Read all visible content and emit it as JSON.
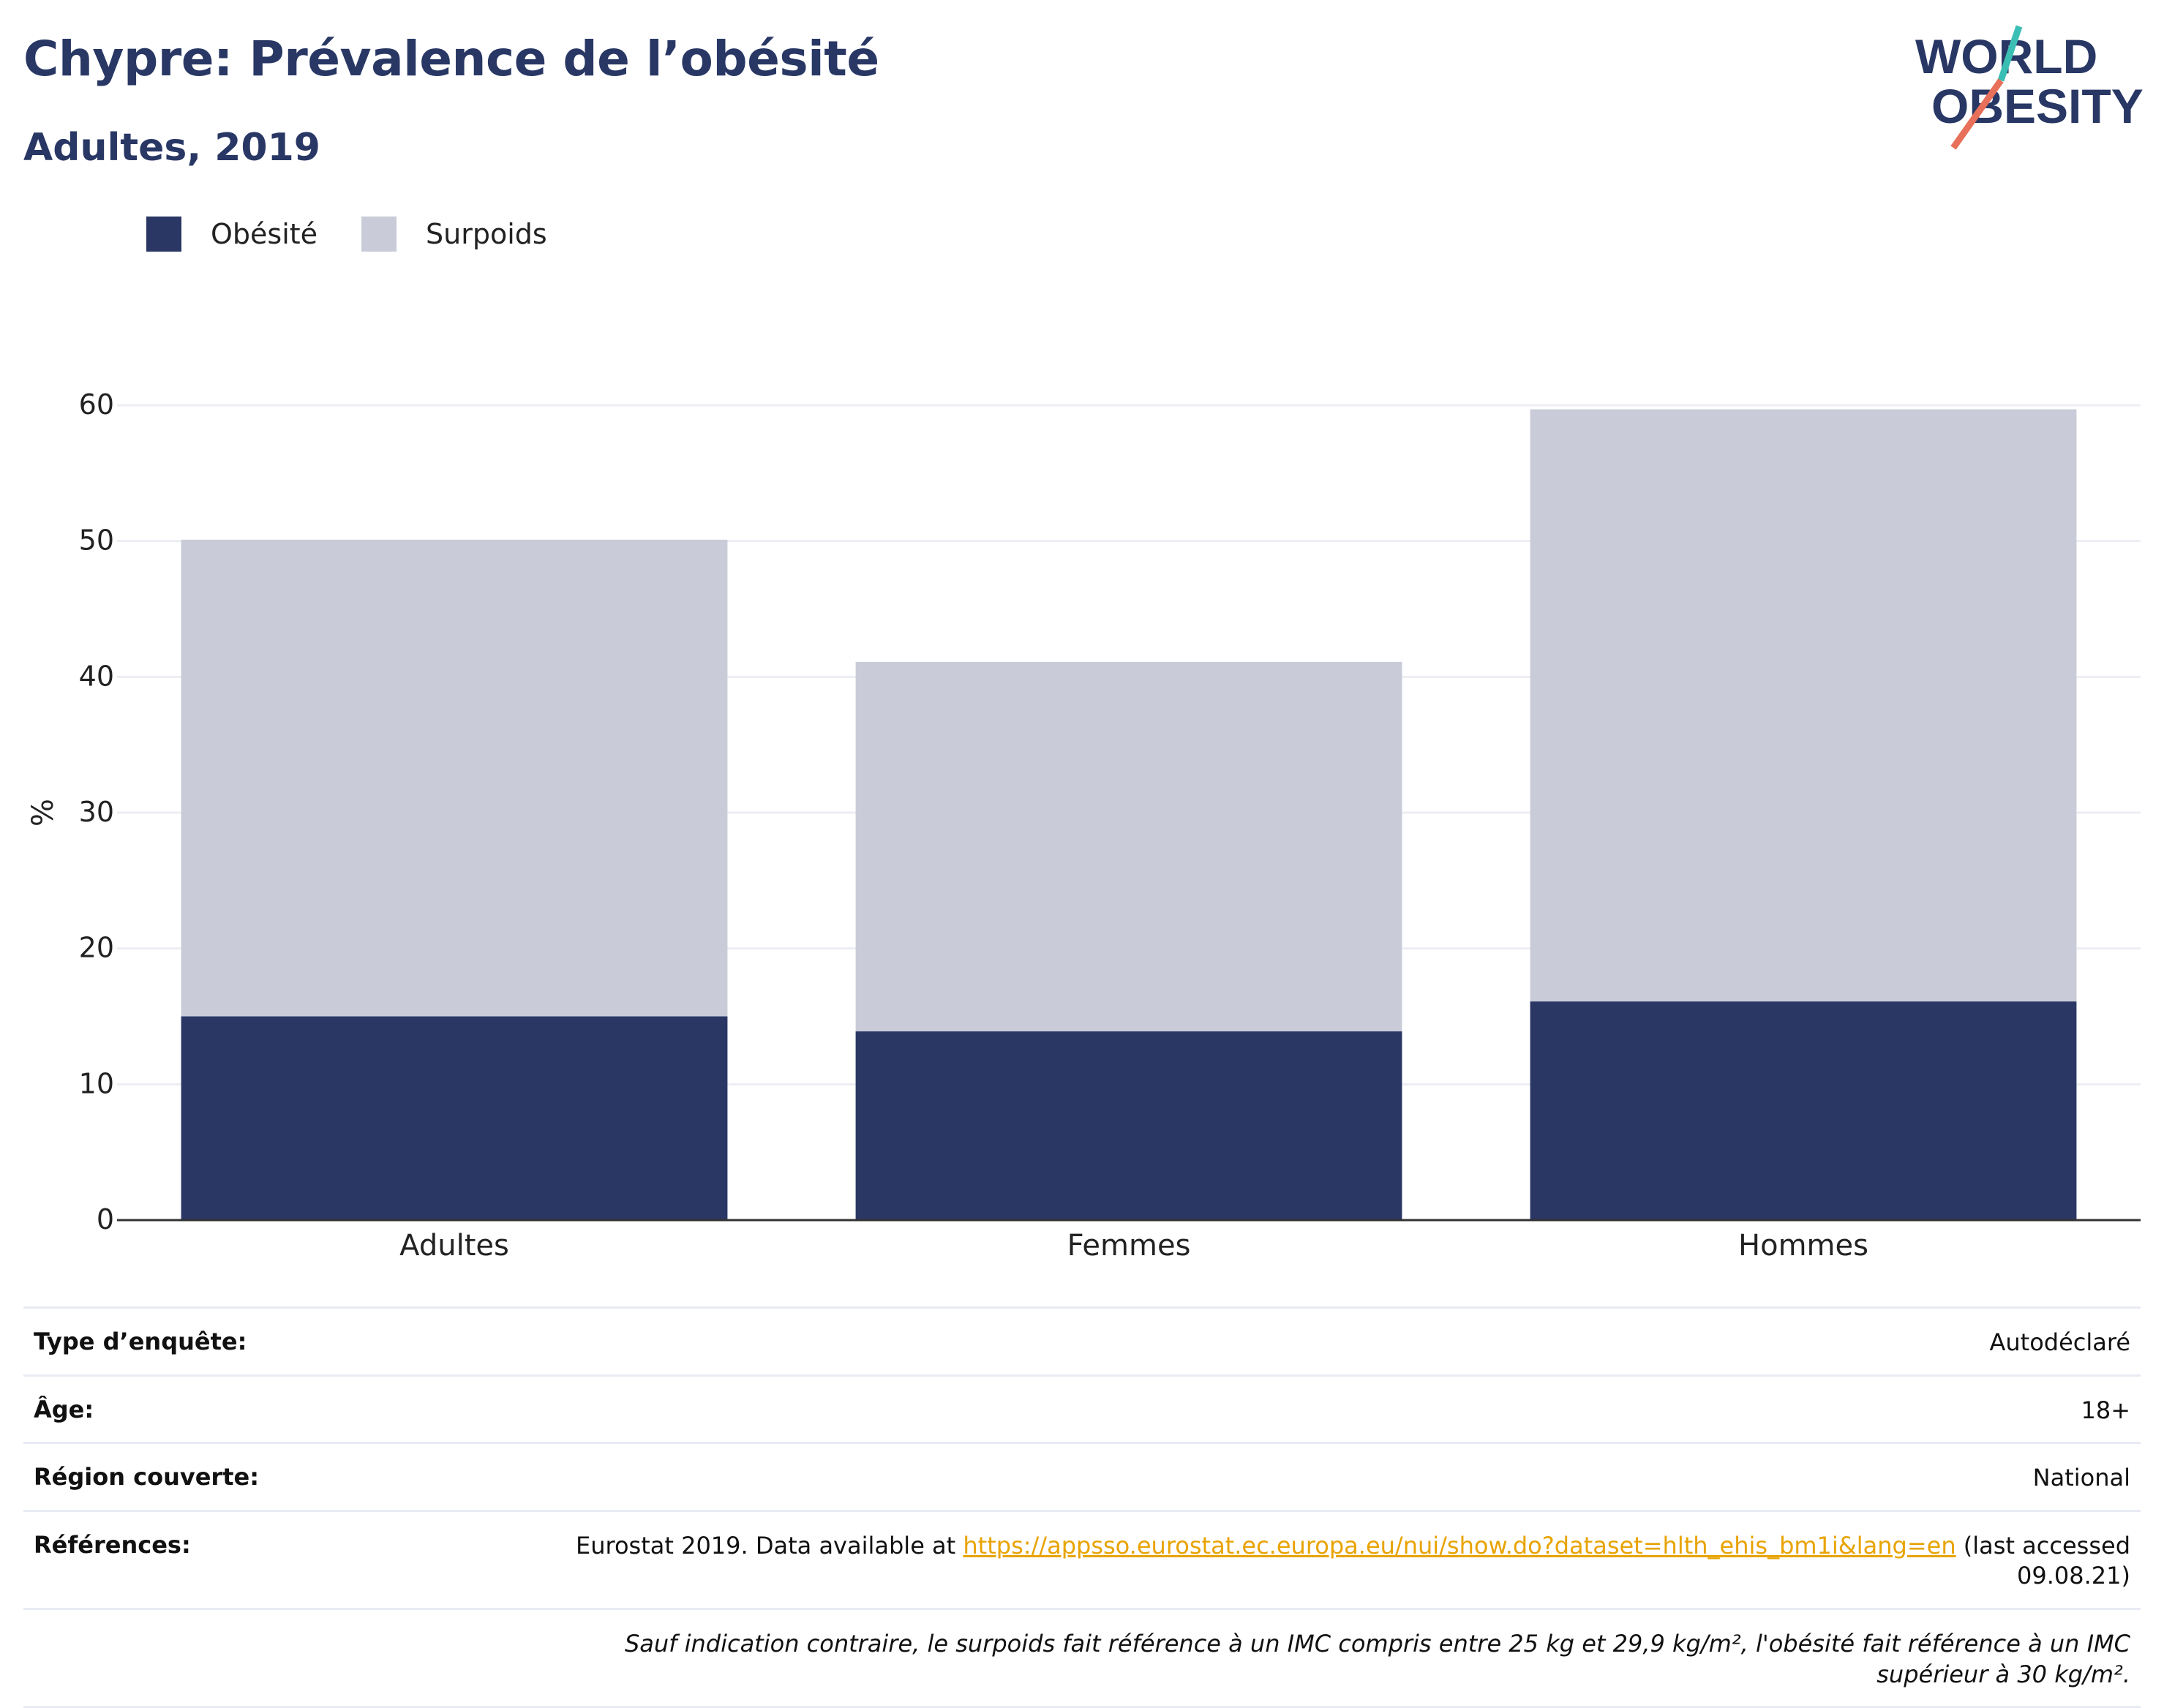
{
  "title": "Chypre: Prévalence de l’obésité",
  "subtitle": "Adultes, 2019",
  "logo": {
    "line1": "WORLD",
    "line2": "OBESITY"
  },
  "colors": {
    "obesity": "#2a3765",
    "overweight": "#c9ccd8",
    "title": "#283764",
    "link": "#e8a300",
    "logo_slash_top": "#3bbfb4",
    "logo_slash_bottom": "#e8705a"
  },
  "legend": [
    {
      "label": "Obésité",
      "color": "#2a3765"
    },
    {
      "label": "Surpoids",
      "color": "#c9ccd8"
    }
  ],
  "chart_data": {
    "type": "bar",
    "stacked": true,
    "categories": [
      "Adultes",
      "Femmes",
      "Hommes"
    ],
    "series": [
      {
        "name": "Obésité",
        "values": [
          15.0,
          13.9,
          16.1
        ]
      },
      {
        "name": "Surpoids",
        "values": [
          35.1,
          27.2,
          43.6
        ]
      }
    ],
    "ylabel": "%",
    "ylim": [
      0,
      60
    ],
    "yticks": [
      0,
      10,
      20,
      30,
      40,
      50,
      60
    ],
    "grid": true,
    "legend_position": "top-left"
  },
  "meta": {
    "survey_type_label": "Type d’enquête:",
    "survey_type_value": "Autodéclaré",
    "age_label": "Âge:",
    "age_value": "18+",
    "region_label": "Région couverte:",
    "region_value": "National",
    "references_label": "Références:",
    "references_prefix": "Eurostat 2019. Data available at ",
    "references_link": "https://appsso.eurostat.ec.europa.eu/nui/show.do?dataset=hlth_ehis_bm1i&lang=en",
    "references_suffix": " (last accessed 09.08.21)",
    "note": "Sauf indication contraire, le surpoids fait référence à un IMC compris entre 25 kg et 29,9 kg/m², l'obésité fait référence à un IMC supérieur à 30 kg/m²."
  }
}
